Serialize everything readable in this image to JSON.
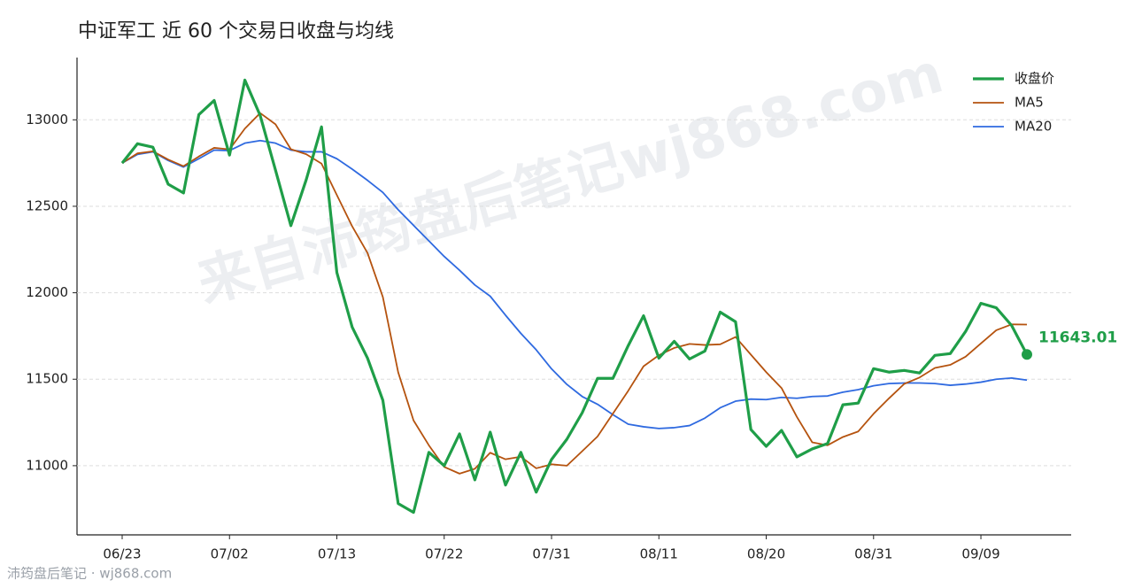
{
  "chart_data": {
    "type": "line",
    "title": "中证军工 近 60 个交易日收盘与均线",
    "watermark": "来自沛筠盘后笔记wj868.com",
    "source": "沛筠盘后笔记 · wj868.com",
    "categories": [
      "06/23",
      null,
      null,
      null,
      null,
      null,
      null,
      "07/02",
      null,
      null,
      null,
      null,
      null,
      null,
      "07/13",
      null,
      null,
      null,
      null,
      null,
      null,
      "07/22",
      null,
      null,
      null,
      null,
      null,
      null,
      "07/31",
      null,
      null,
      null,
      null,
      null,
      null,
      "08/11",
      null,
      null,
      null,
      null,
      null,
      null,
      "08/20",
      null,
      null,
      null,
      null,
      null,
      null,
      "08/31",
      null,
      null,
      null,
      null,
      null,
      null,
      "09/09",
      null,
      null,
      null
    ],
    "series": [
      {
        "name": "收盘价",
        "color": "#1f9e48",
        "values": [
          12750,
          12862,
          12842,
          12628,
          12577,
          13030,
          13112,
          12796,
          13230,
          13025,
          12709,
          12388,
          12653,
          12959,
          12117,
          11801,
          11622,
          11378,
          10781,
          10730,
          11077,
          11000,
          11184,
          10918,
          11194,
          10888,
          11077,
          10847,
          11036,
          11153,
          11306,
          11505,
          11505,
          11694,
          11867,
          11622,
          11719,
          11617,
          11663,
          11888,
          11832,
          11209,
          11112,
          11204,
          11051,
          11097,
          11128,
          11352,
          11362,
          11561,
          11541,
          11551,
          11536,
          11638,
          11648,
          11776,
          11939,
          11913,
          11811,
          11643.01
        ]
      },
      {
        "name": "MA5",
        "color": "#b5530f",
        "values": [
          12750,
          12806,
          12818,
          12770,
          12732,
          12788,
          12838,
          12829,
          12949,
          13039,
          12974,
          12830,
          12801,
          12747,
          12565,
          12384,
          12230,
          11975,
          11540,
          11262,
          11118,
          10993,
          10954,
          10982,
          11075,
          11037,
          11052,
          10985,
          11008,
          11000,
          11084,
          11169,
          11301,
          11433,
          11575,
          11639,
          11681,
          11704,
          11698,
          11702,
          11744,
          11642,
          11541,
          11449,
          11282,
          11135,
          11118,
          11166,
          11198,
          11300,
          11389,
          11473,
          11510,
          11565,
          11583,
          11630,
          11707,
          11783,
          11817,
          11816
        ]
      },
      {
        "name": "MA20",
        "color": "#2f6ae0",
        "values": [
          12750,
          12800,
          12815,
          12765,
          12727,
          12775,
          12825,
          12822,
          12865,
          12880,
          12865,
          12825,
          12815,
          12815,
          12775,
          12715,
          12650,
          12580,
          12480,
          12390,
          12300,
          12210,
          12130,
          12045,
          11980,
          11870,
          11765,
          11670,
          11560,
          11470,
          11400,
          11355,
          11295,
          11240,
          11225,
          11215,
          11220,
          11232,
          11275,
          11335,
          11373,
          11385,
          11382,
          11395,
          11390,
          11400,
          11403,
          11425,
          11440,
          11462,
          11475,
          11478,
          11478,
          11475,
          11465,
          11472,
          11483,
          11500,
          11507,
          11495
        ]
      }
    ],
    "ylim": [
      10600,
      13360
    ],
    "yticks": [
      11000,
      11500,
      12000,
      12500,
      13000
    ],
    "grid": true,
    "legend": "upper right"
  }
}
